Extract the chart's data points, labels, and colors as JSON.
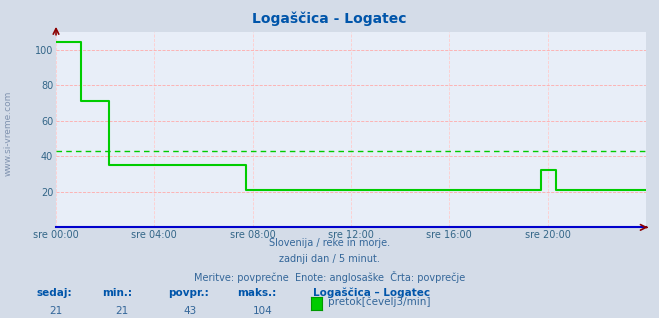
{
  "title": "Logaščica - Logatec",
  "bg_color": "#d4dce8",
  "plot_bg_color": "#e8eef8",
  "grid_color_h": "#ffaaaa",
  "grid_color_v": "#ffcccc",
  "line_color": "#00cc00",
  "avg_line_color": "#00cc00",
  "avg_value": 43,
  "xaxis_color": "#0000cc",
  "yaxis_color": "#336688",
  "xlabel_color": "#336688",
  "title_color": "#0055aa",
  "subtitle_color": "#336699",
  "watermark_color": "#1a3a6a",
  "legend_label_color": "#0055aa",
  "legend_value_color": "#336699",
  "bottom_text1": "Slovenija / reke in morje.",
  "bottom_text2": "zadnji dan / 5 minut.",
  "bottom_text3": "Meritve: povprečne  Enote: anglosaške  Črta: povprečje",
  "stat_labels": [
    "sedaj:",
    "min.:",
    "povpr.:",
    "maks.:"
  ],
  "stat_values": [
    "21",
    "21",
    "43",
    "104"
  ],
  "legend_title": "Logaščica – Logatec",
  "legend_item": "pretok[čevelj3/min]",
  "ylim": [
    0,
    110
  ],
  "yticks": [
    20,
    40,
    60,
    80,
    100
  ],
  "xtick_labels": [
    "sre 00:00",
    "sre 04:00",
    "sre 08:00",
    "sre 12:00",
    "sre 16:00",
    "sre 20:00"
  ],
  "xtick_positions": [
    0,
    240,
    480,
    720,
    960,
    1200
  ],
  "total_minutes": 1440,
  "data_x": [
    0,
    60,
    60,
    130,
    130,
    465,
    465,
    660,
    660,
    945,
    945,
    1185,
    1185,
    1220,
    1220,
    1255,
    1255,
    1440
  ],
  "data_y": [
    104,
    104,
    71,
    71,
    35,
    35,
    21,
    21,
    21,
    21,
    21,
    21,
    32,
    32,
    21,
    21,
    21,
    21
  ],
  "side_text": "www.si-vreme.com"
}
